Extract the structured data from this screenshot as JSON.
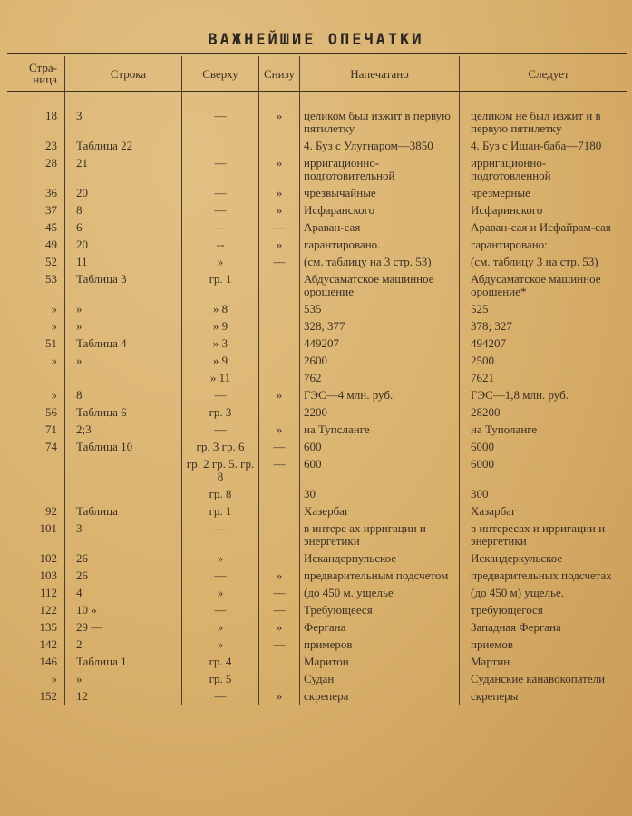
{
  "title": "ВАЖНЕЙШИЕ ОПЕЧАТКИ",
  "columns": [
    "Стра-ница",
    "Строка",
    "Сверху",
    "Снизу",
    "Напечатано",
    "Следует"
  ],
  "rows": [
    [
      "18",
      "3",
      "—",
      "»",
      "целиком был изжит в первую пятилетку",
      "целиком не был изжит и в первую пятилетку"
    ],
    [
      "23",
      "Таблица 22",
      "",
      "",
      "4. Буз с Улугнаром—3850",
      "4. Буз с Ишан-баба—7180"
    ],
    [
      "28",
      "21",
      "—",
      "»",
      "ирригационно- подготовительной",
      "ирригационно-подготовленной"
    ],
    [
      "36",
      "20",
      "—",
      "»",
      "чрезвычайные",
      "чрезмерные"
    ],
    [
      "37",
      "8",
      "—",
      "»",
      "Исфаранского",
      "Исфаринского"
    ],
    [
      "45",
      "6",
      "—",
      "—",
      "Араван-сая",
      "Араван-сая и Исфайрам-сая"
    ],
    [
      "49",
      "20",
      "--",
      "»",
      "гарантировано.",
      "гарантировано:"
    ],
    [
      "52",
      "11",
      "»",
      "—",
      "(см. таблицу на 3 стр. 53)",
      "(см. таблицу 3 на стр. 53)"
    ],
    [
      "53",
      "Таблица 3",
      "гр. 1",
      "",
      "Абдусаматское машинное орошение",
      "Абдусаматское машинное орошение*"
    ],
    [
      "»",
      "»",
      "» 8",
      "",
      "535",
      "525"
    ],
    [
      "»",
      "»",
      "» 9",
      "",
      "328, 377",
      "378; 327"
    ],
    [
      "51",
      "Таблица 4",
      "» 3",
      "",
      "449207",
      "494207"
    ],
    [
      "»",
      "»",
      "» 9",
      "",
      "2600",
      "2500"
    ],
    [
      "",
      "",
      "» 11",
      "",
      "762",
      "7621"
    ],
    [
      "»",
      "8",
      "—",
      "»",
      "ГЭС—4 млн. руб.",
      "ГЭС—1,8 млн. руб."
    ],
    [
      "56",
      "Таблица 6",
      "гр. 3",
      "",
      "2200",
      "28200"
    ],
    [
      "71",
      "2;3",
      "—",
      "»",
      "на Тупсланге",
      "на Туполанге"
    ],
    [
      "74",
      "Таблица 10",
      "гр. 3 гр. 6",
      "—",
      "600",
      "6000"
    ],
    [
      "",
      "",
      "гр. 2 гр. 5. гр. 8",
      "—",
      "600",
      "6000"
    ],
    [
      "",
      "",
      "гр. 8",
      "",
      "30",
      "300"
    ],
    [
      "92",
      "Таблица",
      "гр. 1",
      "",
      "Хазербаг",
      "Хазарбаг"
    ],
    [
      "101",
      "3",
      "—",
      "",
      "в интере ах ирригации и энергетики",
      "в интересах и ирригации и энергетики"
    ],
    [
      "102",
      "26",
      "»",
      "",
      "Искандерпульское",
      "Искандеркульское"
    ],
    [
      "103",
      "26",
      "—",
      "»",
      "предварительным подсчетом",
      "предварительных подсчетах"
    ],
    [
      "112",
      "4",
      "»",
      "—",
      "(до 450 м. ущелье",
      "(до 450 м) ущелье."
    ],
    [
      "122",
      "10      »",
      "—",
      "—",
      "Требующееся",
      "требующегося"
    ],
    [
      "135",
      "29      —",
      "»",
      "»",
      "Фергана",
      "Западная Фергана"
    ],
    [
      "142",
      "2",
      "»",
      "—",
      "примеров",
      "приемов"
    ],
    [
      "146",
      "Таблица 1",
      "гр. 4",
      "",
      "Маритон",
      "Мартин"
    ],
    [
      "»",
      "»",
      "гр. 5",
      "",
      "Судан",
      "Суданские канавокопатели"
    ],
    [
      "152",
      "12",
      "—",
      "»",
      "скрепера",
      "скреперы"
    ]
  ]
}
